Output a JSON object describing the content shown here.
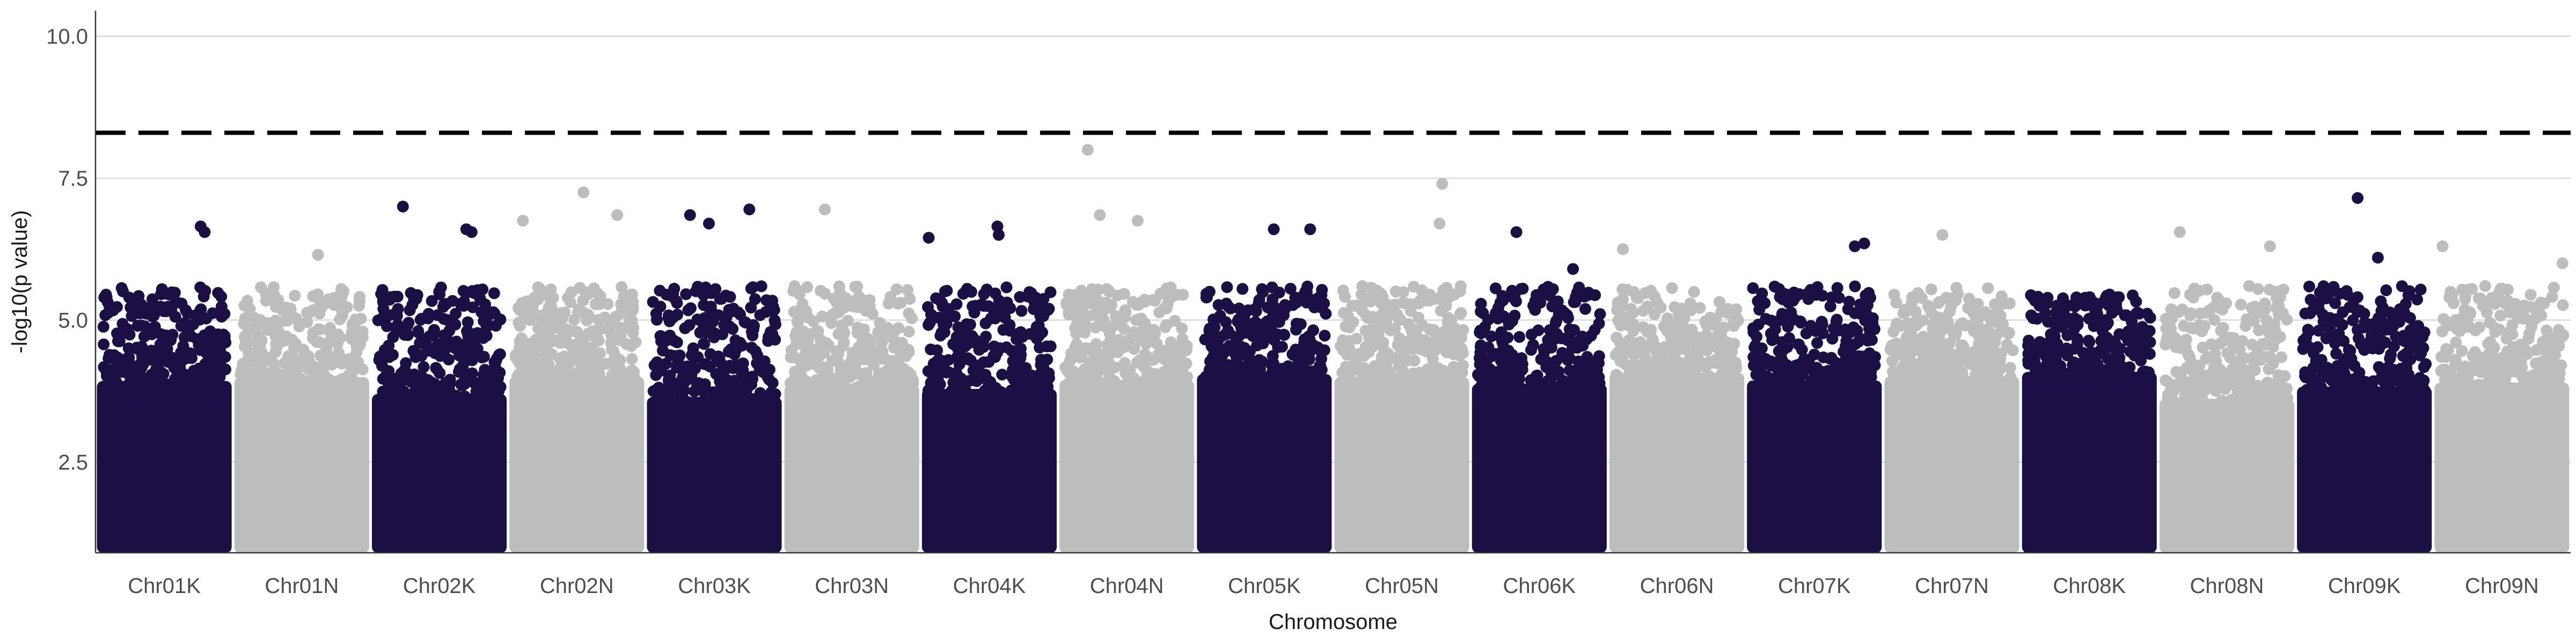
{
  "chart_data": {
    "type": "scatter",
    "subtype": "manhattan",
    "title": "",
    "xlabel": "Chromosome",
    "ylabel": "-log10(p value)",
    "ylim": [
      0.9,
      10.45
    ],
    "y_ticks": [
      2.5,
      5.0,
      7.5,
      10.0
    ],
    "y_tick_labels": [
      "2.5",
      "5.0",
      "7.5",
      "10.0"
    ],
    "grid": "horizontal major lines",
    "threshold": {
      "value": 8.3,
      "style": "dashed",
      "color": "#000000"
    },
    "categories": [
      "Chr01K",
      "Chr01N",
      "Chr02K",
      "Chr02N",
      "Chr03K",
      "Chr03N",
      "Chr04K",
      "Chr04N",
      "Chr05K",
      "Chr05N",
      "Chr06K",
      "Chr06N",
      "Chr07K",
      "Chr07N",
      "Chr08K",
      "Chr08N",
      "Chr09K",
      "Chr09N"
    ],
    "colors": {
      "odd": "#1b0f44",
      "even": "#bdbdbd",
      "grid": "#d9d9d9",
      "axis": "#333333"
    },
    "min_plotted_value": 1.0,
    "chromosome_peaks": [
      6.65,
      6.15,
      7.0,
      7.25,
      6.95,
      6.95,
      6.65,
      8.0,
      6.6,
      7.4,
      6.55,
      6.25,
      6.35,
      6.5,
      5.45,
      6.55,
      7.15,
      6.3
    ],
    "notable_points": [
      {
        "chr": "Chr01K",
        "pos": 0.77,
        "value": 6.65
      },
      {
        "chr": "Chr01K",
        "pos": 0.8,
        "value": 6.55
      },
      {
        "chr": "Chr01N",
        "pos": 0.62,
        "value": 6.15
      },
      {
        "chr": "Chr02K",
        "pos": 0.23,
        "value": 7.0
      },
      {
        "chr": "Chr02K",
        "pos": 0.7,
        "value": 6.6
      },
      {
        "chr": "Chr02K",
        "pos": 0.74,
        "value": 6.55
      },
      {
        "chr": "Chr02N",
        "pos": 0.55,
        "value": 7.25
      },
      {
        "chr": "Chr02N",
        "pos": 0.8,
        "value": 6.85
      },
      {
        "chr": "Chr02N",
        "pos": 0.1,
        "value": 6.75
      },
      {
        "chr": "Chr03K",
        "pos": 0.76,
        "value": 6.95
      },
      {
        "chr": "Chr03K",
        "pos": 0.32,
        "value": 6.85
      },
      {
        "chr": "Chr03K",
        "pos": 0.46,
        "value": 6.7
      },
      {
        "chr": "Chr03N",
        "pos": 0.3,
        "value": 6.95
      },
      {
        "chr": "Chr04K",
        "pos": 0.05,
        "value": 6.45
      },
      {
        "chr": "Chr04K",
        "pos": 0.56,
        "value": 6.65
      },
      {
        "chr": "Chr04K",
        "pos": 0.57,
        "value": 6.5
      },
      {
        "chr": "Chr04N",
        "pos": 0.21,
        "value": 8.0
      },
      {
        "chr": "Chr04N",
        "pos": 0.3,
        "value": 6.85
      },
      {
        "chr": "Chr04N",
        "pos": 0.58,
        "value": 6.75
      },
      {
        "chr": "Chr05K",
        "pos": 0.57,
        "value": 6.6
      },
      {
        "chr": "Chr05K",
        "pos": 0.84,
        "value": 6.6
      },
      {
        "chr": "Chr05N",
        "pos": 0.8,
        "value": 7.4
      },
      {
        "chr": "Chr05N",
        "pos": 0.78,
        "value": 6.7
      },
      {
        "chr": "Chr06K",
        "pos": 0.33,
        "value": 6.55
      },
      {
        "chr": "Chr06K",
        "pos": 0.75,
        "value": 5.9
      },
      {
        "chr": "Chr06N",
        "pos": 0.1,
        "value": 6.25
      },
      {
        "chr": "Chr07K",
        "pos": 0.87,
        "value": 6.35
      },
      {
        "chr": "Chr07K",
        "pos": 0.8,
        "value": 6.3
      },
      {
        "chr": "Chr07N",
        "pos": 0.43,
        "value": 6.5
      },
      {
        "chr": "Chr08K",
        "pos": 0.65,
        "value": 5.45
      },
      {
        "chr": "Chr08K",
        "pos": 0.7,
        "value": 5.4
      },
      {
        "chr": "Chr08N",
        "pos": 0.15,
        "value": 6.55
      },
      {
        "chr": "Chr08N",
        "pos": 0.82,
        "value": 6.3
      },
      {
        "chr": "Chr09K",
        "pos": 0.45,
        "value": 7.15
      },
      {
        "chr": "Chr09K",
        "pos": 0.6,
        "value": 6.1
      },
      {
        "chr": "Chr09N",
        "pos": 0.06,
        "value": 6.3
      },
      {
        "chr": "Chr09N",
        "pos": 0.95,
        "value": 6.0
      }
    ]
  }
}
